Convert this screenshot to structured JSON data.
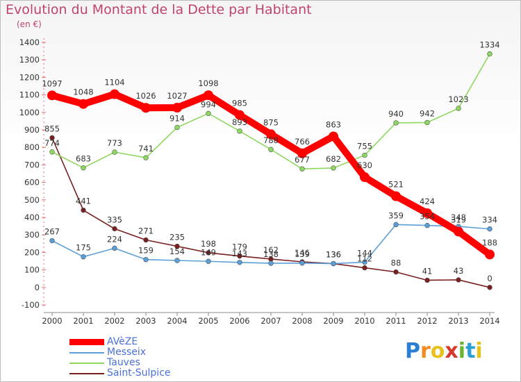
{
  "title": "Evolution du Montant de la Dette par Habitant",
  "unit_label": "(en €)",
  "logo": {
    "letters": [
      "P",
      "r",
      "o",
      "x",
      "i",
      "t",
      "i"
    ],
    "colors": [
      "#2a7fd4",
      "#f28a1e",
      "#e8c31b",
      "#d6382b",
      "#67b52f",
      "#2a9fd4",
      "#e8c31b"
    ]
  },
  "chart_data": {
    "type": "line",
    "title": "Evolution du Montant de la Dette par Habitant",
    "ylabel": "(en €)",
    "x": [
      "2000",
      "2001",
      "2002",
      "2003",
      "2004",
      "2005",
      "2006",
      "2007",
      "2008",
      "2009",
      "2010",
      "2011",
      "2012",
      "2013",
      "2014"
    ],
    "ylim": [
      -100,
      1400
    ],
    "yticks": [
      -100,
      0,
      100,
      200,
      300,
      400,
      500,
      600,
      700,
      800,
      900,
      1000,
      1100,
      1200,
      1300,
      1400
    ],
    "grid": false,
    "legend": "bottom-left",
    "series": [
      {
        "name": "AVèZE",
        "values": [
          1097,
          1048,
          1104,
          1026,
          1027,
          1098,
          985,
          875,
          766,
          863,
          630,
          521,
          424,
          319,
          188
        ],
        "color": "#ff0000",
        "width": 10
      },
      {
        "name": "Messeix",
        "values": [
          267,
          175,
          224,
          159,
          154,
          149,
          143,
          138,
          139,
          136,
          144,
          359,
          354,
          348,
          334
        ],
        "color": "#5b9fd9",
        "width": 1.6
      },
      {
        "name": "Tauves",
        "values": [
          774,
          683,
          773,
          741,
          914,
          994,
          893,
          788,
          677,
          682,
          755,
          940,
          942,
          1023,
          1334
        ],
        "color": "#8ed85f",
        "width": 1.6
      },
      {
        "name": "Saint-Sulpice",
        "values": [
          855,
          441,
          335,
          271,
          235,
          198,
          179,
          162,
          146,
          136,
          112,
          88,
          41,
          43,
          0
        ],
        "color": "#7a1f1f",
        "width": 1.6
      }
    ],
    "data_labels": [
      [
        "1097",
        "1048",
        "1104",
        "1026",
        "1027",
        "1098",
        "985",
        "875",
        "766",
        "863",
        "630",
        "521",
        "424",
        "319",
        "188"
      ],
      [
        "267",
        "175",
        "224",
        "159",
        "154",
        "149",
        "143",
        "138",
        "139",
        "136",
        "144",
        "359",
        "354",
        "348",
        "334"
      ],
      [
        "774",
        "683",
        "773",
        "741",
        "914",
        "994",
        "893",
        "788",
        "677",
        "682",
        "755",
        "940",
        "942",
        "1023",
        "1334"
      ],
      [
        "855",
        "441",
        "335",
        "271",
        "235",
        "198",
        "179",
        "162",
        "146",
        "136",
        "112",
        "88",
        "41",
        "43",
        "0"
      ]
    ]
  }
}
